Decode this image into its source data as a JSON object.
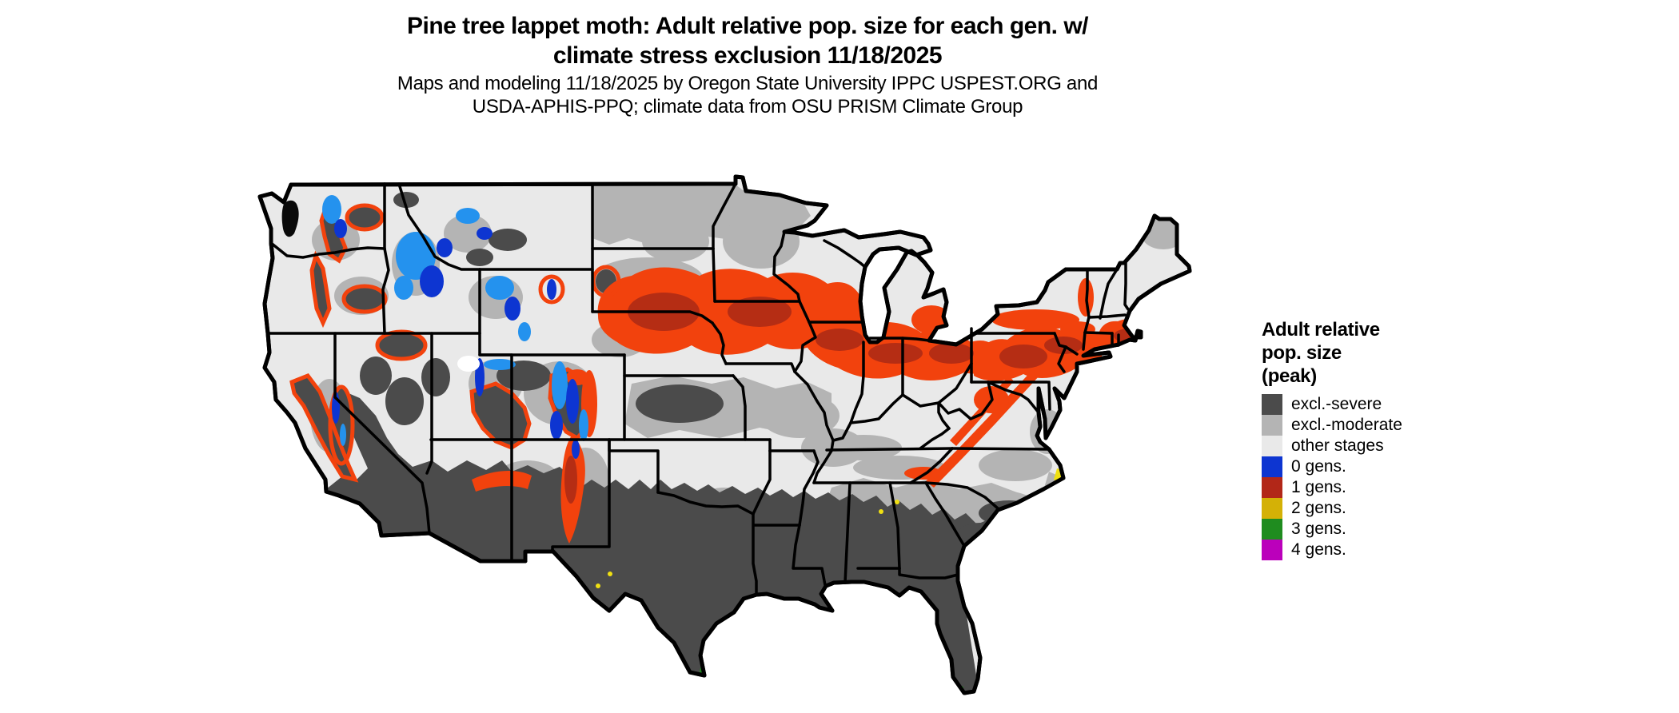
{
  "header": {
    "title_line1": "Pine tree lappet moth: Adult relative pop. size for each gen. w/",
    "title_line2": "climate stress exclusion 11/18/2025",
    "subtitle_line1": "Maps and modeling 11/18/2025 by Oregon State University IPPC USPEST.ORG and",
    "subtitle_line2": "USDA-APHIS-PPQ; climate data from OSU PRISM Climate Group"
  },
  "legend": {
    "title_lines": [
      "Adult relative",
      "pop. size",
      "(peak)"
    ],
    "items": [
      {
        "name": "excl-severe",
        "label": "excl.-severe",
        "color": "#4b4b4b"
      },
      {
        "name": "excl-moderate",
        "label": "excl.-moderate",
        "color": "#b4b4b4"
      },
      {
        "name": "other-stages",
        "label": "other stages",
        "color": "#e9e9e9"
      },
      {
        "name": "0-gens",
        "label": "0 gens.",
        "color": "#0d35d1"
      },
      {
        "name": "1-gens",
        "label": "1 gens.",
        "color": "#b22718"
      },
      {
        "name": "2-gens",
        "label": "2 gens.",
        "color": "#d4b106"
      },
      {
        "name": "3-gens",
        "label": "3 gens.",
        "color": "#1f8c1f"
      },
      {
        "name": "4-gens",
        "label": "4 gens.",
        "color": "#bb00bb"
      }
    ]
  },
  "map": {
    "palette": {
      "other": "#e9e9e9",
      "moderate": "#b4b4b4",
      "severe": "#4b4b4b",
      "blue": "#0d35d1",
      "bluelight": "#2492ee",
      "red": "#b52d14",
      "orange": "#f2420d",
      "yellow": "#f0e012",
      "green": "#1f8c1f",
      "border": "#000000"
    }
  }
}
